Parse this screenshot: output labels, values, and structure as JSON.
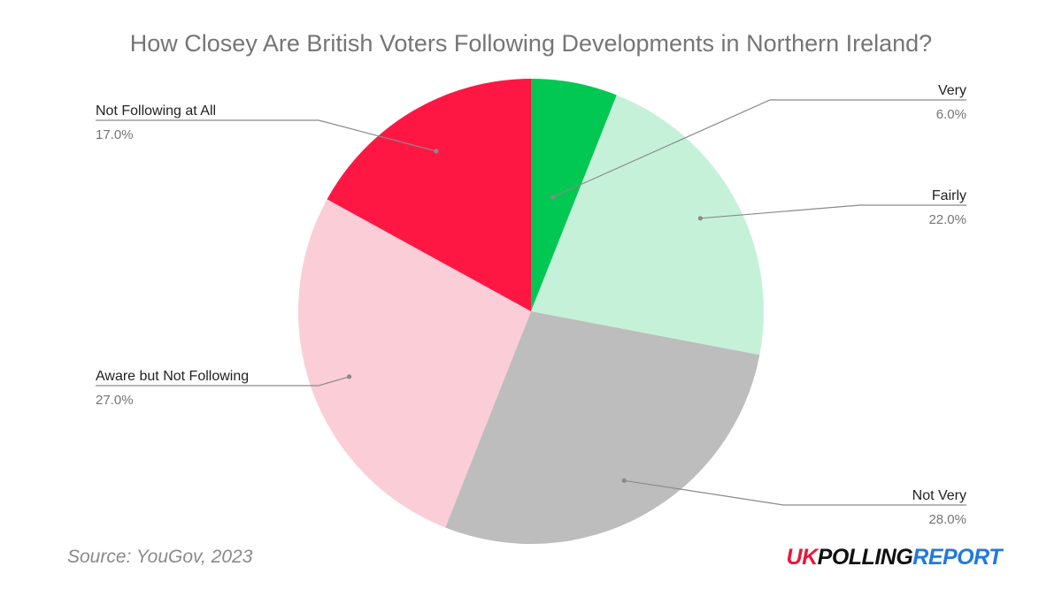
{
  "chart_data": {
    "type": "pie",
    "title": "How Closey Are British Voters Following Developments in Northern Ireland?",
    "slices": [
      {
        "label": "Very",
        "value": 6.0,
        "display": "6.0%",
        "color": "#00c853"
      },
      {
        "label": "Fairly",
        "value": 22.0,
        "display": "22.0%",
        "color": "#c6f1d9"
      },
      {
        "label": "Not Very",
        "value": 28.0,
        "display": "28.0%",
        "color": "#bdbdbd"
      },
      {
        "label": "Aware but Not Following",
        "value": 27.0,
        "display": "27.0%",
        "color": "#fbcdd7"
      },
      {
        "label": "Not Following at All",
        "value": 17.0,
        "display": "17.0%",
        "color": "#ff1744"
      }
    ],
    "start": "12 o'clock, clockwise",
    "legend": "none (leader-line labels)"
  },
  "footer": {
    "source": "Source: YouGov, 2023",
    "logo": {
      "part1": "UK",
      "part2": "POLLING",
      "part3": "REPORT",
      "color1": "#e8173b",
      "color2": "#111111",
      "color3": "#1f7ae0"
    }
  },
  "colors": {
    "leader_line": "#8a8a8a",
    "label_text": "#222222",
    "pct_text": "#757575"
  }
}
